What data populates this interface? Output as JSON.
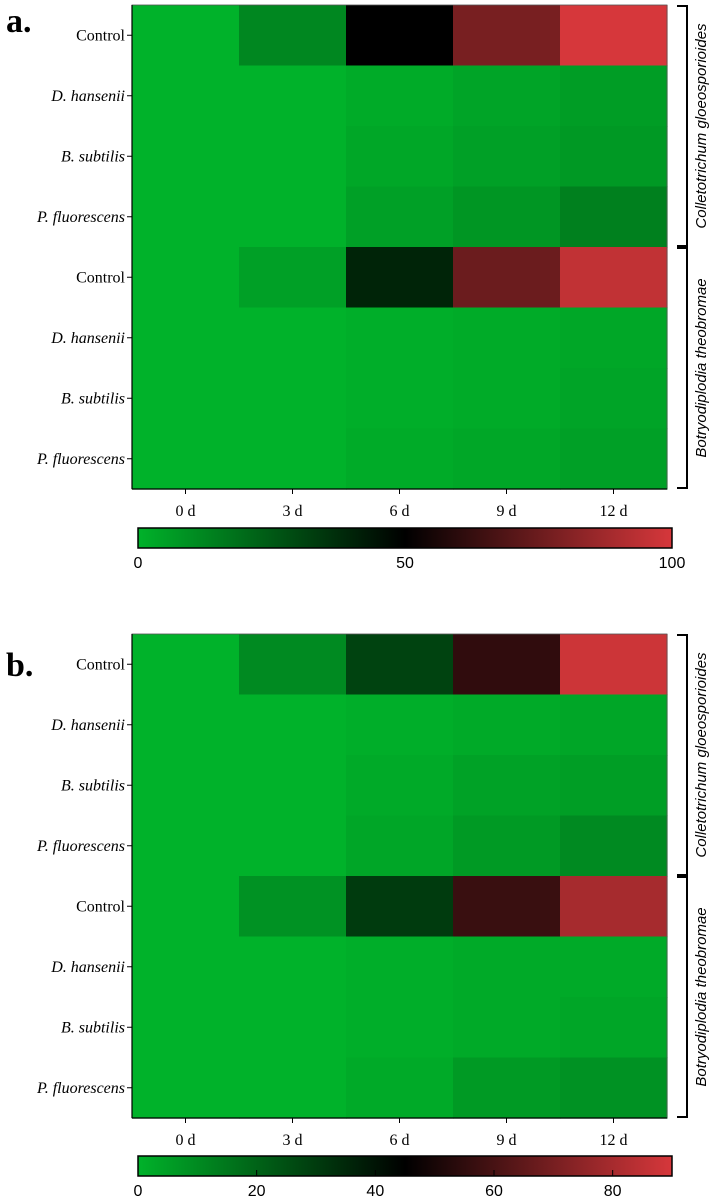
{
  "chart_data": [
    {
      "type": "heatmap",
      "panel_label": "a.",
      "columns": [
        "0 d",
        "3 d",
        "6 d",
        "9 d",
        "12 d"
      ],
      "row_labels": [
        "Control",
        "D. hansenii",
        "B. subtilis",
        "P. fluorescens",
        "Control",
        "D. hansenii",
        "B. subtilis",
        "P. fluorescens"
      ],
      "row_italic": [
        false,
        true,
        true,
        true,
        false,
        true,
        true,
        true
      ],
      "groups": [
        {
          "label": "Colletotrichum gloeosporioides",
          "rows": [
            0,
            3
          ]
        },
        {
          "label": "Botryodiplodia theobromae",
          "rows": [
            4,
            7
          ]
        }
      ],
      "values": [
        [
          0,
          12,
          50,
          78,
          100
        ],
        [
          0,
          0,
          2,
          4,
          6
        ],
        [
          0,
          0,
          3,
          5,
          7
        ],
        [
          0,
          0,
          5,
          8,
          14
        ],
        [
          0,
          5,
          40,
          75,
          95
        ],
        [
          0,
          0,
          1,
          2,
          3
        ],
        [
          0,
          0,
          1,
          2,
          4
        ],
        [
          0,
          0,
          2,
          3,
          5
        ]
      ],
      "colorbar": {
        "min": 0,
        "mid": 50,
        "max": 100,
        "ticks": [
          "0",
          "50",
          "100"
        ]
      }
    },
    {
      "type": "heatmap",
      "panel_label": "b.",
      "columns": [
        "0 d",
        "3 d",
        "6 d",
        "9 d",
        "12 d"
      ],
      "row_labels": [
        "Control",
        "D. hansenii",
        "B. subtilis",
        "P. fluorescens",
        "Control",
        "D. hansenii",
        "B. subtilis",
        "P. fluorescens"
      ],
      "row_italic": [
        false,
        true,
        true,
        true,
        false,
        true,
        true,
        true
      ],
      "groups": [
        {
          "label": "Colletotrichum gloeosporioides",
          "rows": [
            0,
            3
          ]
        },
        {
          "label": "Botryodiplodia theobromae",
          "rows": [
            4,
            7
          ]
        }
      ],
      "values": [
        [
          0,
          10,
          28,
          55,
          88
        ],
        [
          0,
          0,
          1,
          2,
          3
        ],
        [
          0,
          0,
          2,
          4,
          5
        ],
        [
          0,
          0,
          3,
          6,
          10
        ],
        [
          0,
          8,
          30,
          57,
          80
        ],
        [
          0,
          0,
          1,
          2,
          2
        ],
        [
          0,
          0,
          1,
          2,
          3
        ],
        [
          0,
          0,
          2,
          6,
          8
        ]
      ],
      "colorbar": {
        "min": 0,
        "mid": 45,
        "max": 90,
        "ticks": [
          "0",
          "20",
          "40",
          "60",
          "80"
        ],
        "tick_values": [
          0,
          20,
          40,
          60,
          80
        ]
      }
    }
  ],
  "colors": {
    "low": "#00b22a",
    "mid": "#000000",
    "high": "#d6373b"
  }
}
